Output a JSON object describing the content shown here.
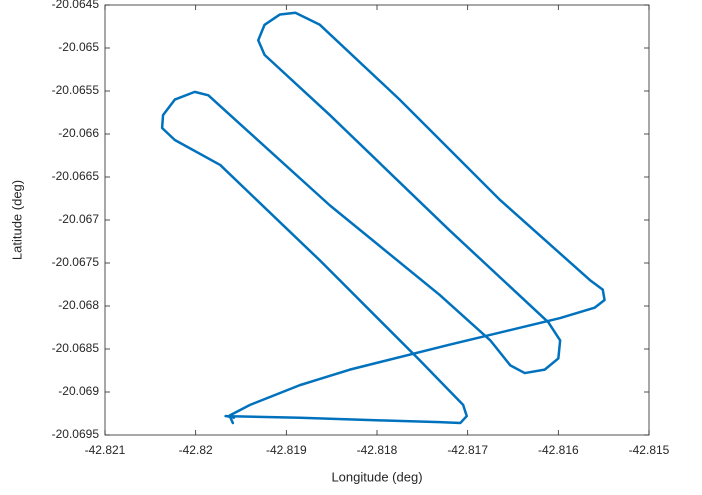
{
  "chart_data": {
    "type": "line",
    "xlabel": "Longitude (deg)",
    "ylabel": "Latitude (deg)",
    "xlim": [
      -42.821,
      -42.815
    ],
    "xticks": [
      -42.821,
      -42.82,
      -42.819,
      -42.818,
      -42.817,
      -42.816,
      -42.815
    ],
    "ylim": [
      -20.0695,
      -20.0645
    ],
    "yticks": [
      -20.0695,
      -20.069,
      -20.0685,
      -20.068,
      -20.0675,
      -20.067,
      -20.0665,
      -20.066,
      -20.0655,
      -20.065,
      -20.0645
    ],
    "series": [
      {
        "color": "#0072bd",
        "x": [
          -42.81959,
          -42.81962,
          -42.81967,
          -42.81885,
          -42.81797,
          -42.81731,
          -42.81708,
          -42.81701,
          -42.81705,
          -42.81753,
          -42.81863,
          -42.81973,
          -42.82023,
          -42.82037,
          -42.82036,
          -42.82023,
          -42.82001,
          -42.81986,
          -42.81962,
          -42.81852,
          -42.81731,
          -42.81675,
          -42.81653,
          -42.81637,
          -42.81615,
          -42.816,
          -42.81598,
          -42.81611,
          -42.8172,
          -42.81852,
          -42.81924,
          -42.81931,
          -42.81924,
          -42.81907,
          -42.8189,
          -42.81863,
          -42.81775,
          -42.81664,
          -42.81565,
          -42.81551,
          -42.81549,
          -42.8156,
          -42.81598,
          -42.8172,
          -42.8183,
          -42.81885,
          -42.8194,
          -42.81962,
          -42.81958
        ],
        "values": [
          -20.06936,
          -20.06929,
          -20.06928,
          -20.0693,
          -20.06933,
          -20.06935,
          -20.06936,
          -20.06928,
          -20.06915,
          -20.06863,
          -20.06747,
          -20.06636,
          -20.06607,
          -20.06593,
          -20.06578,
          -20.0656,
          -20.06551,
          -20.06555,
          -20.06578,
          -20.06683,
          -20.06787,
          -20.0684,
          -20.06869,
          -20.06878,
          -20.06874,
          -20.06861,
          -20.0684,
          -20.06819,
          -20.06712,
          -20.06578,
          -20.06508,
          -20.06491,
          -20.06473,
          -20.06461,
          -20.06459,
          -20.06473,
          -20.0656,
          -20.06677,
          -20.0677,
          -20.06781,
          -20.06793,
          -20.06802,
          -20.06814,
          -20.06845,
          -20.06874,
          -20.06892,
          -20.06915,
          -20.06927,
          -20.0693
        ]
      }
    ]
  }
}
